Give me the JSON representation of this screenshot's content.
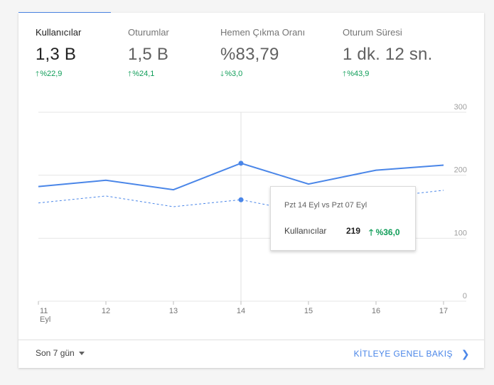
{
  "metrics": [
    {
      "label": "Kullanıcılar",
      "value": "1,3 B",
      "delta": "%22,9",
      "direction": "up"
    },
    {
      "label": "Oturumlar",
      "value": "1,5 B",
      "delta": "%24,1",
      "direction": "up"
    },
    {
      "label": "Hemen Çıkma Oranı",
      "value": "%83,79",
      "delta": "%3,0",
      "direction": "down"
    },
    {
      "label": "Oturum Süresi",
      "value": "1 dk. 12 sn.",
      "delta": "%43,9",
      "direction": "up"
    }
  ],
  "colors": {
    "accent": "#4a86e8",
    "positive": "#0f9d58",
    "grid": "#e6e6e6"
  },
  "chart_data": {
    "type": "line",
    "x": [
      "11",
      "12",
      "13",
      "14",
      "15",
      "16",
      "17"
    ],
    "x_sublabel": "Eyl",
    "ylim": [
      0,
      300
    ],
    "yticks": [
      "0",
      "100",
      "200",
      "300"
    ],
    "series": [
      {
        "values": [
          182,
          192,
          177,
          219,
          186,
          208,
          216
        ],
        "style": "solid"
      },
      {
        "values": [
          156,
          167,
          150,
          161,
          140,
          164,
          176
        ],
        "style": "dashed"
      }
    ],
    "highlight_index": 3,
    "grid": true
  },
  "tooltip": {
    "title": "Pzt 14 Eyl vs Pzt 07 Eyl",
    "metric_label": "Kullanıcılar",
    "value": "219",
    "delta": "%36,0"
  },
  "footer": {
    "range_label": "Son 7 gün",
    "link_label": "KİTLEYE GENEL BAKIŞ"
  }
}
